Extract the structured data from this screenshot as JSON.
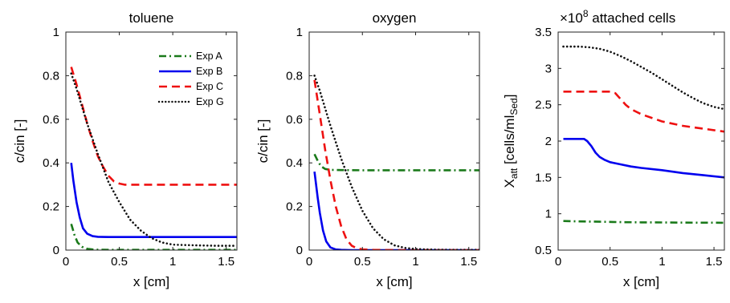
{
  "chart_data": [
    {
      "type": "line",
      "title": "toluene",
      "xlabel": "x [cm]",
      "ylabel": "c/cin [-]",
      "xlim": [
        0,
        1.6
      ],
      "ylim": [
        0,
        1
      ],
      "xticks": [
        0,
        0.5,
        1,
        1.5
      ],
      "xtick_labels": [
        "0",
        "0.5",
        "1",
        "1.5"
      ],
      "yticks": [
        0,
        0.2,
        0.4,
        0.6,
        0.8,
        1
      ],
      "ytick_labels": [
        "0",
        "0.2",
        "0.4",
        "0.6",
        "0.8",
        "1"
      ],
      "grid": false,
      "legend_position": "top-right",
      "series": [
        {
          "name": "Exp A",
          "color": "#1a7a1a",
          "style": "dashdot",
          "x": [
            0.05,
            0.08,
            0.11,
            0.15,
            0.2,
            0.25,
            0.3,
            0.4,
            0.6,
            1.0,
            1.6
          ],
          "y": [
            0.12,
            0.07,
            0.035,
            0.015,
            0.006,
            0.003,
            0.002,
            0.001,
            0.001,
            0.001,
            0.001
          ]
        },
        {
          "name": "Exp B",
          "color": "#0000ee",
          "style": "solid",
          "x": [
            0.05,
            0.07,
            0.1,
            0.13,
            0.16,
            0.2,
            0.25,
            0.3,
            0.4,
            0.6,
            1.0,
            1.6
          ],
          "y": [
            0.4,
            0.32,
            0.22,
            0.15,
            0.1,
            0.075,
            0.064,
            0.061,
            0.06,
            0.06,
            0.06,
            0.06
          ]
        },
        {
          "name": "Exp C",
          "color": "#ee1111",
          "style": "dashed",
          "x": [
            0.05,
            0.1,
            0.15,
            0.2,
            0.25,
            0.3,
            0.35,
            0.4,
            0.45,
            0.5,
            0.55,
            0.65,
            0.8,
            1.0,
            1.6
          ],
          "y": [
            0.84,
            0.76,
            0.67,
            0.58,
            0.5,
            0.43,
            0.38,
            0.34,
            0.315,
            0.305,
            0.3,
            0.3,
            0.3,
            0.3,
            0.3
          ]
        },
        {
          "name": "Exp G",
          "color": "#111111",
          "style": "dotted",
          "x": [
            0.05,
            0.1,
            0.2,
            0.3,
            0.4,
            0.5,
            0.6,
            0.7,
            0.8,
            0.9,
            1.0,
            1.2,
            1.4,
            1.6
          ],
          "y": [
            0.81,
            0.74,
            0.58,
            0.44,
            0.31,
            0.22,
            0.14,
            0.09,
            0.055,
            0.035,
            0.025,
            0.022,
            0.02,
            0.02
          ]
        }
      ]
    },
    {
      "type": "line",
      "title": "oxygen",
      "xlabel": "x [cm]",
      "ylabel": "c/cin [-]",
      "xlim": [
        0,
        1.6
      ],
      "ylim": [
        0,
        1
      ],
      "xticks": [
        0,
        0.5,
        1,
        1.5
      ],
      "xtick_labels": [
        "0",
        "0.5",
        "1",
        "1.5"
      ],
      "yticks": [
        0,
        0.2,
        0.4,
        0.6,
        0.8,
        1
      ],
      "ytick_labels": [
        "0",
        "0.2",
        "0.4",
        "0.6",
        "0.8",
        "1"
      ],
      "grid": false,
      "series": [
        {
          "name": "Exp A",
          "color": "#1a7a1a",
          "style": "dashdot",
          "x": [
            0.05,
            0.08,
            0.11,
            0.15,
            0.2,
            0.3,
            0.5,
            1.0,
            1.6
          ],
          "y": [
            0.44,
            0.41,
            0.385,
            0.372,
            0.368,
            0.367,
            0.366,
            0.366,
            0.366
          ]
        },
        {
          "name": "Exp B",
          "color": "#0000ee",
          "style": "solid",
          "x": [
            0.05,
            0.08,
            0.1,
            0.13,
            0.16,
            0.2,
            0.25,
            0.3,
            0.4,
            0.6,
            1.0,
            1.6
          ],
          "y": [
            0.36,
            0.24,
            0.17,
            0.09,
            0.04,
            0.012,
            0.003,
            0.001,
            0.0,
            0.0,
            0.0,
            0.0
          ]
        },
        {
          "name": "Exp C",
          "color": "#ee1111",
          "style": "dashed",
          "x": [
            0.05,
            0.1,
            0.15,
            0.2,
            0.25,
            0.3,
            0.35,
            0.4,
            0.45,
            0.5,
            0.6,
            0.8,
            1.0,
            1.6
          ],
          "y": [
            0.78,
            0.62,
            0.46,
            0.32,
            0.2,
            0.11,
            0.05,
            0.02,
            0.008,
            0.003,
            0.001,
            0.0,
            0.0,
            0.0
          ]
        },
        {
          "name": "Exp G",
          "color": "#111111",
          "style": "dotted",
          "x": [
            0.05,
            0.1,
            0.2,
            0.3,
            0.4,
            0.5,
            0.6,
            0.7,
            0.8,
            0.9,
            1.0,
            1.1,
            1.2,
            1.4,
            1.6
          ],
          "y": [
            0.8,
            0.73,
            0.57,
            0.42,
            0.29,
            0.18,
            0.1,
            0.05,
            0.022,
            0.01,
            0.005,
            0.003,
            0.002,
            0.001,
            0.001
          ]
        }
      ]
    },
    {
      "type": "line",
      "title": "attached cells",
      "scale_label": "×10",
      "scale_exponent": "8",
      "xlabel": "x [cm]",
      "ylabel": {
        "main": "X",
        "sub1": "att",
        "bracket": "[cells/ml",
        "sub2": "Sed",
        "close": "]"
      },
      "xlim": [
        0,
        1.6
      ],
      "ylim": [
        0.5,
        3.5
      ],
      "xticks": [
        0,
        0.5,
        1,
        1.5
      ],
      "xtick_labels": [
        "0",
        "0.5",
        "1",
        "1.5"
      ],
      "yticks": [
        0.5,
        1,
        1.5,
        2,
        2.5,
        3,
        3.5
      ],
      "ytick_labels": [
        "0.5",
        "1",
        "1.5",
        "2",
        "2.5",
        "3",
        "3.5"
      ],
      "grid": false,
      "series": [
        {
          "name": "Exp A",
          "color": "#1a7a1a",
          "style": "dashdot",
          "x": [
            0.05,
            0.2,
            0.4,
            0.6,
            0.8,
            1.0,
            1.2,
            1.4,
            1.6
          ],
          "y": [
            0.9,
            0.895,
            0.89,
            0.885,
            0.882,
            0.88,
            0.878,
            0.877,
            0.876
          ]
        },
        {
          "name": "Exp B",
          "color": "#0000ee",
          "style": "solid",
          "x": [
            0.05,
            0.2,
            0.25,
            0.28,
            0.32,
            0.36,
            0.4,
            0.45,
            0.5,
            0.6,
            0.7,
            0.8,
            1.0,
            1.2,
            1.4,
            1.6
          ],
          "y": [
            2.03,
            2.03,
            2.03,
            2.0,
            1.93,
            1.84,
            1.78,
            1.74,
            1.71,
            1.68,
            1.65,
            1.63,
            1.6,
            1.56,
            1.53,
            1.5
          ]
        },
        {
          "name": "Exp C",
          "color": "#ee1111",
          "style": "dashed",
          "x": [
            0.05,
            0.3,
            0.5,
            0.55,
            0.6,
            0.65,
            0.7,
            0.8,
            0.9,
            1.0,
            1.2,
            1.4,
            1.6
          ],
          "y": [
            2.68,
            2.68,
            2.68,
            2.66,
            2.58,
            2.5,
            2.44,
            2.37,
            2.32,
            2.27,
            2.21,
            2.17,
            2.13
          ]
        },
        {
          "name": "Exp G",
          "color": "#111111",
          "style": "dotted",
          "x": [
            0.05,
            0.2,
            0.3,
            0.4,
            0.5,
            0.6,
            0.7,
            0.8,
            0.9,
            1.0,
            1.1,
            1.2,
            1.3,
            1.4,
            1.5,
            1.6
          ],
          "y": [
            3.3,
            3.3,
            3.29,
            3.27,
            3.23,
            3.17,
            3.1,
            3.02,
            2.94,
            2.85,
            2.76,
            2.67,
            2.59,
            2.52,
            2.47,
            2.44
          ]
        }
      ]
    }
  ]
}
